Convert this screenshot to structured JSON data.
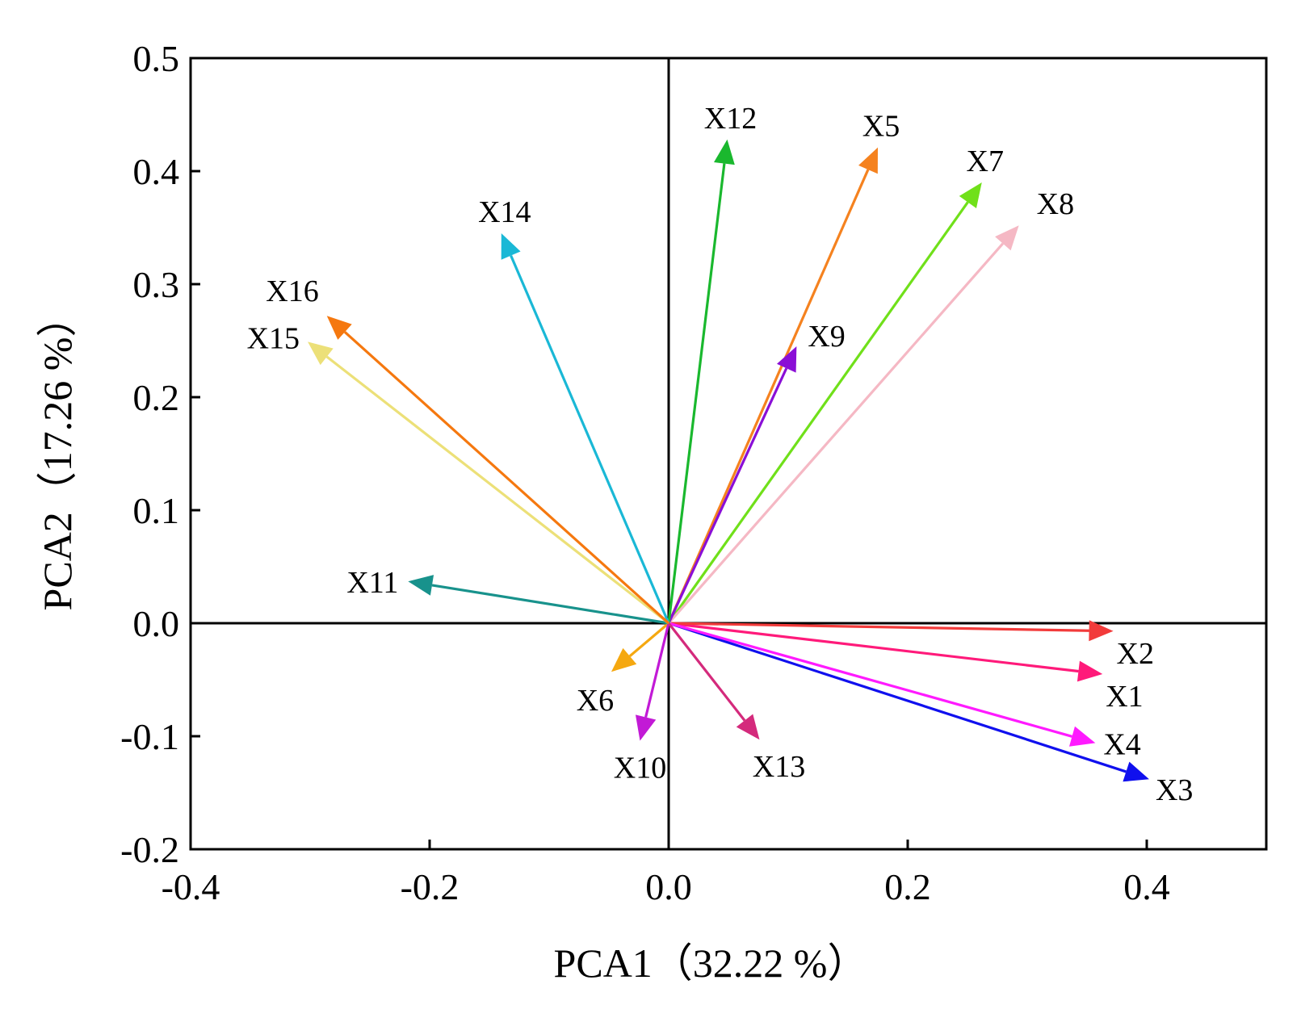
{
  "chart_data": {
    "type": "scatter",
    "subtype": "pca-loading-vectors",
    "xlabel": "PCA1（32.22 %）",
    "ylabel": "PCA2（17.26 %）",
    "xlim": [
      -0.4,
      0.5
    ],
    "ylim": [
      -0.2,
      0.5
    ],
    "xticks": [
      -0.4,
      -0.2,
      0.0,
      0.2,
      0.4
    ],
    "xtick_labels": [
      "-0.4",
      "-0.2",
      "0.0",
      "0.2",
      "0.4"
    ],
    "yticks": [
      -0.2,
      -0.1,
      0.0,
      0.1,
      0.2,
      0.3,
      0.4,
      0.5
    ],
    "ytick_labels": [
      "-0.2",
      "-0.1",
      "0.0",
      "0.1",
      "0.2",
      "0.3",
      "0.4",
      "0.5"
    ],
    "zero_lines": true,
    "grid": false,
    "vectors": [
      {
        "name": "X1",
        "x": 0.363,
        "y": -0.045,
        "color": "#ff1a7a",
        "label_pos": "below-right"
      },
      {
        "name": "X2",
        "x": 0.372,
        "y": -0.007,
        "color": "#f23b3b",
        "label_pos": "below-right"
      },
      {
        "name": "X3",
        "x": 0.402,
        "y": -0.138,
        "color": "#1010ee",
        "label_pos": "right"
      },
      {
        "name": "X4",
        "x": 0.357,
        "y": -0.106,
        "color": "#ff1aff",
        "label_pos": "right"
      },
      {
        "name": "X5",
        "x": 0.175,
        "y": 0.421,
        "color": "#f5821f",
        "label_pos": "above"
      },
      {
        "name": "X6",
        "x": -0.048,
        "y": -0.043,
        "color": "#f5a810",
        "label_pos": "below-left"
      },
      {
        "name": "X7",
        "x": 0.262,
        "y": 0.39,
        "color": "#70e01a",
        "label_pos": "above"
      },
      {
        "name": "X8",
        "x": 0.293,
        "y": 0.352,
        "color": "#f5b8c4",
        "label_pos": "above-right"
      },
      {
        "name": "X9",
        "x": 0.107,
        "y": 0.245,
        "color": "#8a0fd6",
        "label_pos": "right"
      },
      {
        "name": "X10",
        "x": -0.024,
        "y": -0.104,
        "color": "#c21ad6",
        "label_pos": "below"
      },
      {
        "name": "X11",
        "x": -0.218,
        "y": 0.037,
        "color": "#18928c",
        "label_pos": "left"
      },
      {
        "name": "X12",
        "x": 0.049,
        "y": 0.428,
        "color": "#1ab82e",
        "label_pos": "above"
      },
      {
        "name": "X13",
        "x": 0.076,
        "y": -0.103,
        "color": "#d42a7c",
        "label_pos": "below"
      },
      {
        "name": "X14",
        "x": -0.14,
        "y": 0.345,
        "color": "#1ab8d6",
        "label_pos": "above"
      },
      {
        "name": "X15",
        "x": -0.302,
        "y": 0.249,
        "color": "#ece078",
        "label_pos": "left"
      },
      {
        "name": "X16",
        "x": -0.286,
        "y": 0.272,
        "color": "#f5780f",
        "label_pos": "left"
      }
    ]
  }
}
